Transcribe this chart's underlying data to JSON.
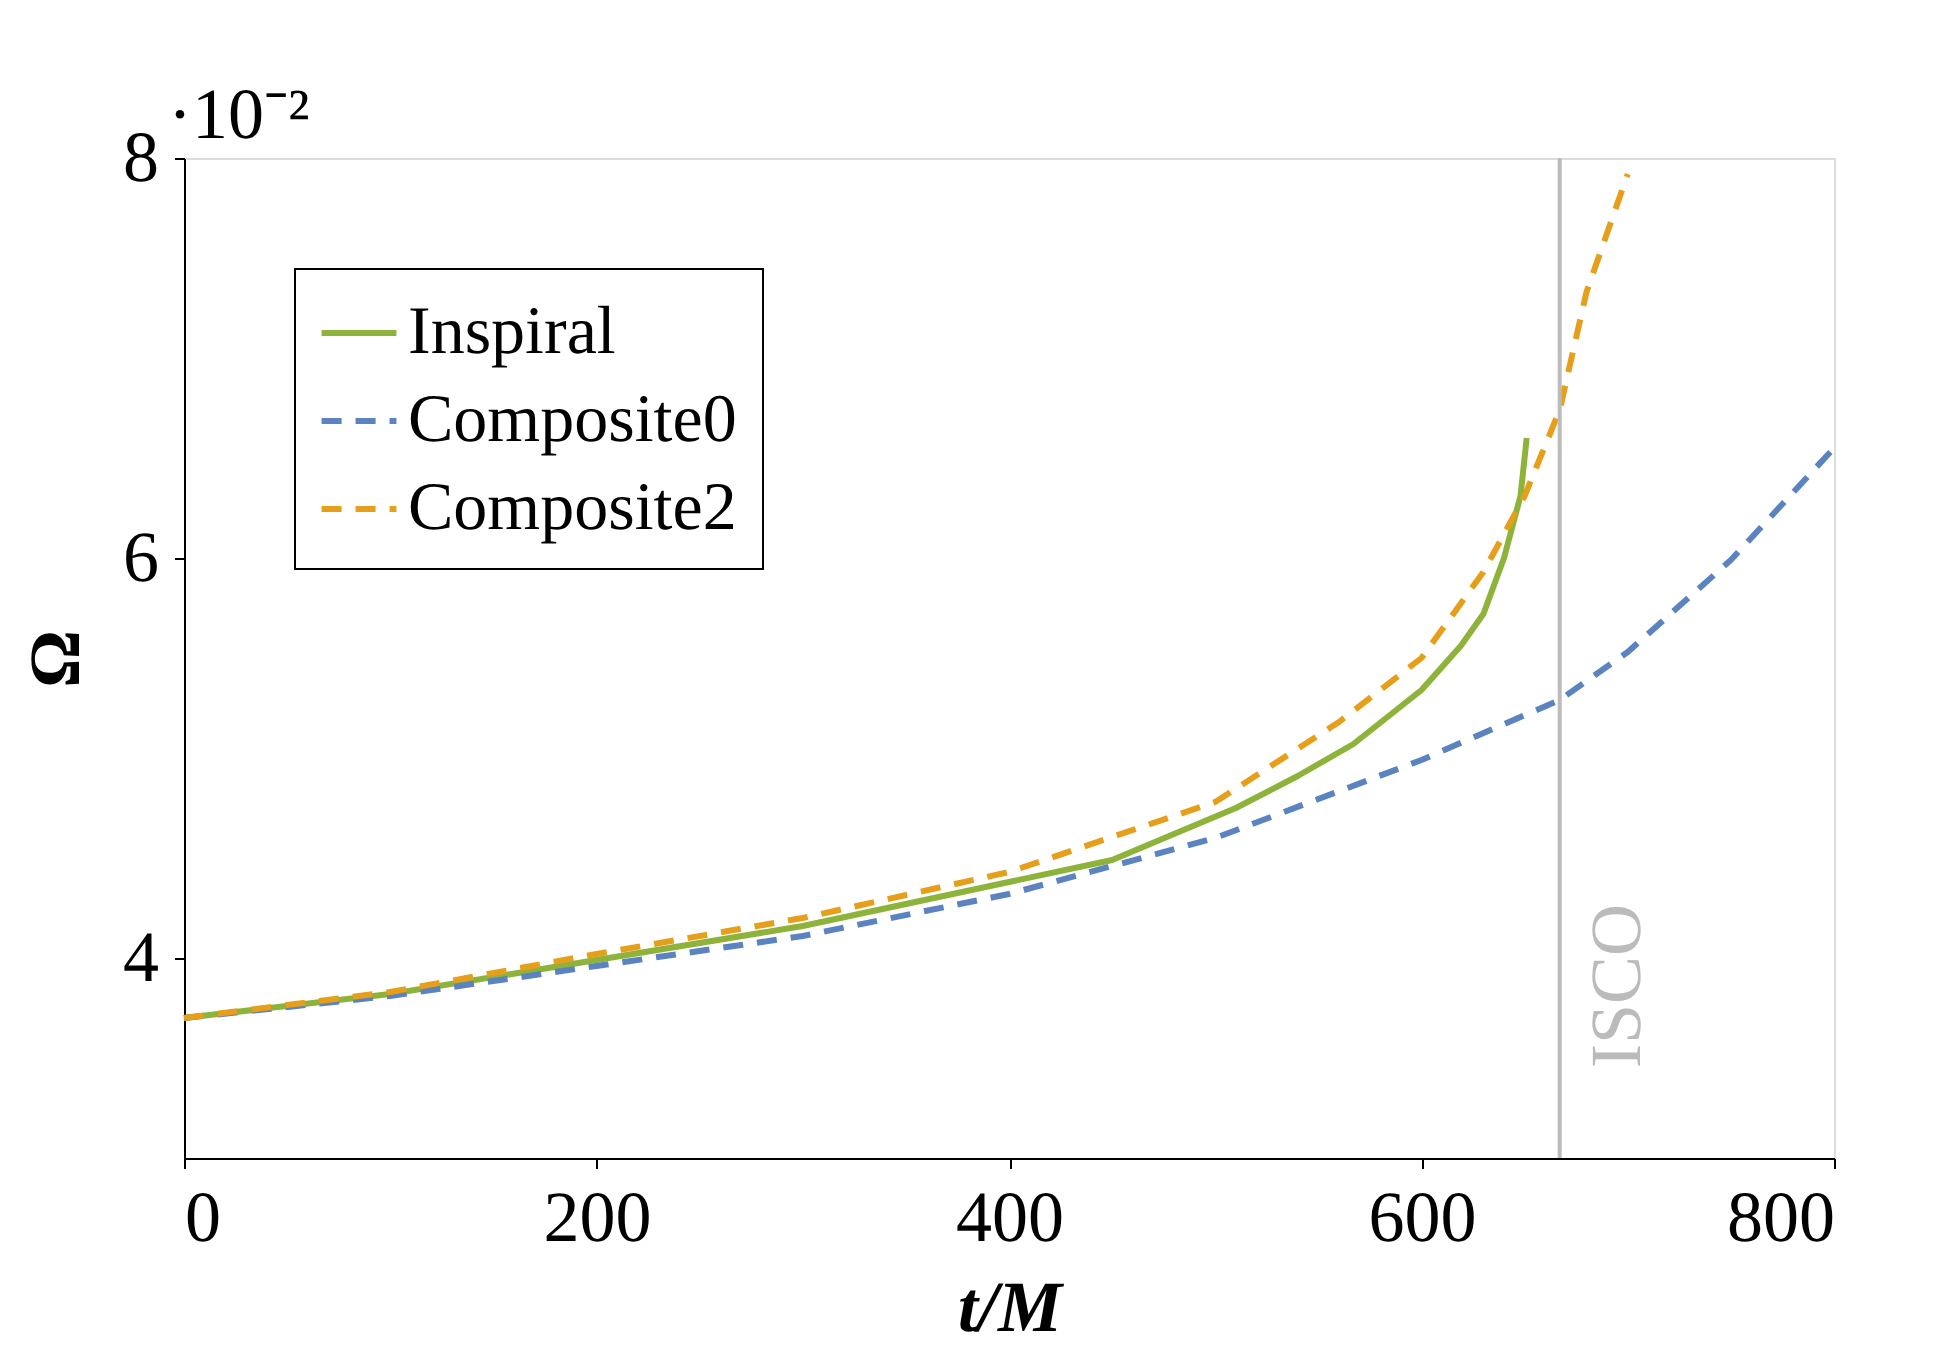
{
  "chart_data": {
    "type": "line",
    "xlabel": "t/M",
    "ylabel": "Ω",
    "xlim": [
      0,
      800
    ],
    "xticks": [
      0,
      200,
      400,
      600,
      800
    ],
    "ylim": [
      3,
      8
    ],
    "yticks": [
      4,
      6,
      8
    ],
    "grid": false,
    "legend": "top left",
    "marker": "none",
    "annotations": [
      "·10⁻²"
    ],
    "ref_lines": [
      {
        "axis": "x",
        "value": 667,
        "label": "ISCO",
        "color": "#bbbbbb",
        "line_style": "solid"
      }
    ],
    "series": [
      {
        "name": "Inspiral",
        "color": "#8db33a",
        "line_style": "solid",
        "x": [
          0,
          100,
          200,
          300,
          400,
          450,
          510,
          540,
          567,
          600,
          619,
          630,
          640,
          648,
          651
        ],
        "values": [
          3.7,
          3.82,
          3.99,
          4.16,
          4.38,
          4.49,
          4.75,
          4.91,
          5.07,
          5.34,
          5.56,
          5.72,
          6.0,
          6.31,
          6.6
        ]
      },
      {
        "name": "Composite0",
        "color": "#5b83c0",
        "line_style": "dashed",
        "x": [
          0,
          100,
          200,
          300,
          400,
          500,
          600,
          667,
          700,
          750,
          800
        ],
        "values": [
          3.7,
          3.81,
          3.96,
          4.11,
          4.32,
          4.6,
          4.99,
          5.29,
          5.53,
          5.99,
          6.55
        ]
      },
      {
        "name": "Composite2",
        "color": "#e69f1a",
        "line_style": "dashed",
        "x": [
          0,
          100,
          200,
          300,
          400,
          500,
          560,
          600,
          630,
          650,
          667,
          680,
          700
        ],
        "values": [
          3.7,
          3.83,
          4.02,
          4.2,
          4.43,
          4.78,
          5.18,
          5.5,
          5.93,
          6.31,
          6.74,
          7.33,
          7.92
        ]
      }
    ]
  }
}
